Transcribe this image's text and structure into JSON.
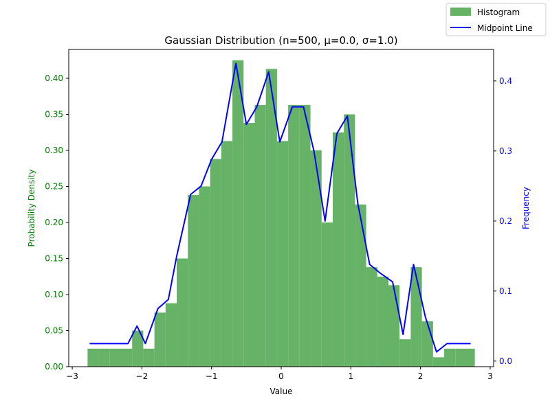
{
  "chart_data": {
    "type": "bar",
    "title": "Gaussian Distribution (n=500, μ=0.0, σ=1.0)",
    "xlabel": "Value",
    "ylabel_left": "Probability Density",
    "ylabel_right": "Frequency",
    "xlim": [
      -3.05,
      3.05
    ],
    "ylim_left": [
      0,
      0.44
    ],
    "ylim_right": [
      -0.008,
      0.445
    ],
    "x_ticks": [
      -3,
      -2,
      -1,
      0,
      1,
      2,
      3
    ],
    "x_tick_labels": [
      "−3",
      "−2",
      "−1",
      "0",
      "1",
      "2",
      "3"
    ],
    "y_left_ticks": [
      0.0,
      0.05,
      0.1,
      0.15,
      0.2,
      0.25,
      0.3,
      0.35,
      0.4
    ],
    "y_left_tick_labels": [
      "0.00",
      "0.05",
      "0.10",
      "0.15",
      "0.20",
      "0.25",
      "0.30",
      "0.35",
      "0.40"
    ],
    "y_right_ticks": [
      0.0,
      0.1,
      0.2,
      0.3,
      0.4
    ],
    "y_right_tick_labels": [
      "0.0",
      "0.1",
      "0.2",
      "0.3",
      "0.4"
    ],
    "grid": false,
    "legend_position": "top-right",
    "colors": {
      "histogram": "#66b266",
      "line": "#0000ff",
      "left_axis": "#008000",
      "right_axis": "#0000ff"
    },
    "series": [
      {
        "name": "Histogram",
        "type": "bar",
        "bin_edges": [
          -2.78,
          -2.62,
          -2.46,
          -2.3,
          -2.14,
          -1.98,
          -1.82,
          -1.66,
          -1.5,
          -1.34,
          -1.18,
          -1.02,
          -0.86,
          -0.7,
          -0.54,
          -0.38,
          -0.22,
          -0.06,
          0.1,
          0.26,
          0.42,
          0.58,
          0.74,
          0.9,
          1.06,
          1.22,
          1.38,
          1.54,
          1.7,
          1.86,
          2.02,
          2.18,
          2.34,
          2.5,
          2.66,
          2.78
        ],
        "values": [
          0.025,
          0.025,
          0.025,
          0.025,
          0.05,
          0.025,
          0.075,
          0.088,
          0.15,
          0.238,
          0.25,
          0.288,
          0.313,
          0.425,
          0.338,
          0.363,
          0.413,
          0.313,
          0.363,
          0.363,
          0.3,
          0.2,
          0.325,
          0.35,
          0.225,
          0.138,
          0.125,
          0.113,
          0.038,
          0.138,
          0.063,
          0.013,
          0.025,
          0.025,
          0.025
        ]
      },
      {
        "name": "Midpoint Line",
        "type": "line",
        "x": [
          -2.75,
          -2.6,
          -2.45,
          -2.3,
          -2.2,
          -2.07,
          -1.95,
          -1.77,
          -1.62,
          -1.5,
          -1.3,
          -1.15,
          -1.0,
          -0.85,
          -0.65,
          -0.5,
          -0.35,
          -0.18,
          -0.02,
          0.16,
          0.32,
          0.47,
          0.63,
          0.8,
          0.95,
          1.1,
          1.27,
          1.43,
          1.6,
          1.75,
          1.9,
          2.07,
          2.23,
          2.38,
          2.55,
          2.72
        ],
        "values": [
          0.025,
          0.025,
          0.025,
          0.025,
          0.025,
          0.05,
          0.025,
          0.075,
          0.088,
          0.15,
          0.238,
          0.25,
          0.288,
          0.313,
          0.425,
          0.338,
          0.363,
          0.413,
          0.313,
          0.363,
          0.363,
          0.3,
          0.2,
          0.325,
          0.35,
          0.225,
          0.138,
          0.125,
          0.113,
          0.038,
          0.138,
          0.063,
          0.013,
          0.025,
          0.025,
          0.025
        ]
      }
    ]
  }
}
